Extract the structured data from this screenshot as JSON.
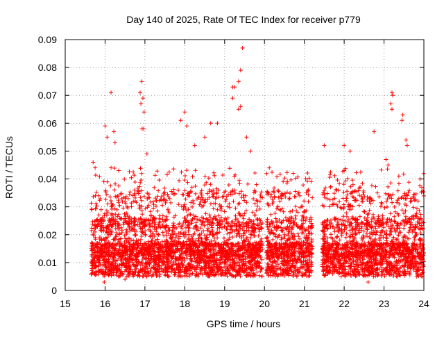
{
  "chart_data": {
    "type": "scatter",
    "title": "Day 140 of 2025, Rate Of TEC Index for receiver p779",
    "xlabel": "GPS time / hours",
    "ylabel": "ROTI / TECUs",
    "xlim": [
      15,
      24
    ],
    "ylim": [
      0,
      0.09
    ],
    "x_ticks": [
      "15",
      "16",
      "17",
      "18",
      "19",
      "20",
      "21",
      "22",
      "23",
      "24"
    ],
    "y_ticks": [
      "0",
      "0.01",
      "0.02",
      "0.03",
      "0.04",
      "0.05",
      "0.06",
      "0.07",
      "0.08",
      "0.09"
    ],
    "grid": true,
    "marker": "+",
    "color": "#ff0000",
    "series": [
      {
        "name": "ROTI",
        "segments": [
          [
            15.65,
            19.95
          ],
          [
            20.05,
            21.2
          ],
          [
            21.45,
            24.0
          ]
        ],
        "n_points_approx": 5200,
        "typical_range": [
          0.004,
          0.03
        ],
        "notable_points": [
          {
            "x": 19.45,
            "y": 0.087
          },
          {
            "x": 19.4,
            "y": 0.079
          },
          {
            "x": 19.35,
            "y": 0.075
          },
          {
            "x": 16.92,
            "y": 0.075
          },
          {
            "x": 16.88,
            "y": 0.071
          },
          {
            "x": 16.15,
            "y": 0.071
          },
          {
            "x": 16.95,
            "y": 0.069
          },
          {
            "x": 16.9,
            "y": 0.067
          },
          {
            "x": 16.98,
            "y": 0.064
          },
          {
            "x": 16.93,
            "y": 0.058
          },
          {
            "x": 16.97,
            "y": 0.058
          },
          {
            "x": 19.2,
            "y": 0.073
          },
          {
            "x": 19.25,
            "y": 0.073
          },
          {
            "x": 19.2,
            "y": 0.069
          },
          {
            "x": 19.4,
            "y": 0.066
          },
          {
            "x": 19.35,
            "y": 0.065
          },
          {
            "x": 23.2,
            "y": 0.071
          },
          {
            "x": 23.22,
            "y": 0.07
          },
          {
            "x": 23.17,
            "y": 0.067
          },
          {
            "x": 23.2,
            "y": 0.065
          },
          {
            "x": 23.47,
            "y": 0.063
          },
          {
            "x": 23.45,
            "y": 0.061
          },
          {
            "x": 16.0,
            "y": 0.059
          },
          {
            "x": 16.05,
            "y": 0.055
          },
          {
            "x": 16.22,
            "y": 0.057
          },
          {
            "x": 16.25,
            "y": 0.053
          },
          {
            "x": 17.9,
            "y": 0.061
          },
          {
            "x": 18.0,
            "y": 0.064
          },
          {
            "x": 18.05,
            "y": 0.059
          },
          {
            "x": 18.65,
            "y": 0.06
          },
          {
            "x": 18.82,
            "y": 0.06
          },
          {
            "x": 22.75,
            "y": 0.057
          },
          {
            "x": 21.5,
            "y": 0.052
          },
          {
            "x": 22.0,
            "y": 0.052
          },
          {
            "x": 22.15,
            "y": 0.05
          },
          {
            "x": 18.25,
            "y": 0.052
          },
          {
            "x": 18.5,
            "y": 0.055
          },
          {
            "x": 17.05,
            "y": 0.049
          },
          {
            "x": 23.55,
            "y": 0.054
          },
          {
            "x": 23.58,
            "y": 0.052
          },
          {
            "x": 23.05,
            "y": 0.047
          },
          {
            "x": 23.1,
            "y": 0.045
          },
          {
            "x": 19.55,
            "y": 0.055
          },
          {
            "x": 19.65,
            "y": 0.05
          },
          {
            "x": 16.15,
            "y": 0.044
          },
          {
            "x": 20.72,
            "y": 0.042
          },
          {
            "x": 22.0,
            "y": 0.043
          },
          {
            "x": 23.9,
            "y": 0.04
          },
          {
            "x": 23.95,
            "y": 0.037
          },
          {
            "x": 15.7,
            "y": 0.046
          },
          {
            "x": 15.75,
            "y": 0.044
          },
          {
            "x": 19.8,
            "y": 0.038
          },
          {
            "x": 21.1,
            "y": 0.036
          },
          {
            "x": 21.05,
            "y": 0.035
          },
          {
            "x": 15.98,
            "y": 0.003
          },
          {
            "x": 22.6,
            "y": 0.003
          },
          {
            "x": 16.5,
            "y": 0.004
          }
        ]
      }
    ]
  }
}
